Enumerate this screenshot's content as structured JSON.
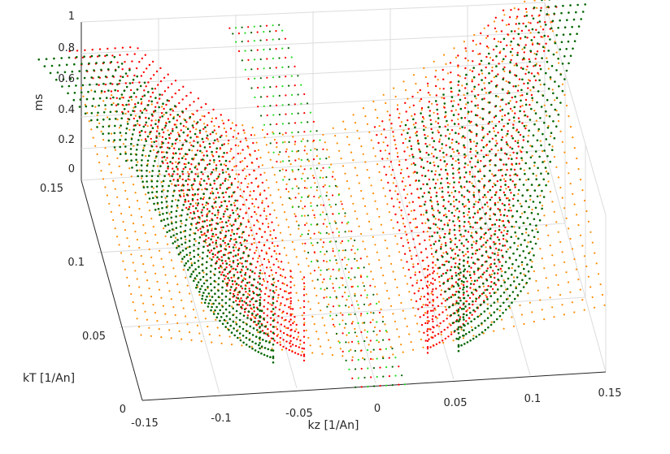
{
  "chart_data": {
    "type": "scatter3d",
    "view": "3-D perspective, viewed from above",
    "xlabel": "kz [1/An]",
    "ylabel": "kT [1/An]",
    "zlabel": "ms",
    "xlim": [
      -0.15,
      0.15
    ],
    "ylim": [
      0,
      0.15
    ],
    "zlim": [
      0,
      1
    ],
    "xticks": [
      "-0.15",
      "-0.1",
      "-0.05",
      "0",
      "0.05",
      "0.1",
      "0.15"
    ],
    "yticks": [
      "0",
      "0.05",
      "0.1",
      "0.15"
    ],
    "zticks": [
      "0",
      "0.2",
      "0.4",
      "0.6",
      "0.8",
      "1"
    ],
    "grid": true,
    "colors": {
      "orange": "#ff8c00",
      "red": "#ff0000",
      "dark_green": "#006400",
      "light_green": "#22dd22"
    },
    "surfaces": [
      {
        "color": "orange",
        "description_points": [
          {
            "kz": -0.15,
            "kT": 0.15,
            "ms": 0.05
          },
          {
            "kz": 0.0,
            "kT": 0.0,
            "ms": 0.0
          },
          {
            "kz": 0.15,
            "kT": 0.15,
            "ms": 0.85
          }
        ]
      },
      {
        "color": "red",
        "description_points": [
          {
            "kz": -0.15,
            "kT": 0.15,
            "ms": 0.8
          },
          {
            "kz": -0.04,
            "kT": 0.02,
            "ms": 0.0
          },
          {
            "kz": 0.04,
            "kT": 0.02,
            "ms": 0.0
          },
          {
            "kz": 0.15,
            "kT": 0.15,
            "ms": 0.9
          }
        ]
      },
      {
        "color": "dark_green",
        "description_points": [
          {
            "kz": -0.15,
            "kT": 0.15,
            "ms": 0.75
          },
          {
            "kz": -0.06,
            "kT": 0.02,
            "ms": 0.0
          },
          {
            "kz": 0.06,
            "kT": 0.02,
            "ms": 0.0
          },
          {
            "kz": 0.15,
            "kT": 0.15,
            "ms": 0.95
          }
        ]
      }
    ]
  }
}
